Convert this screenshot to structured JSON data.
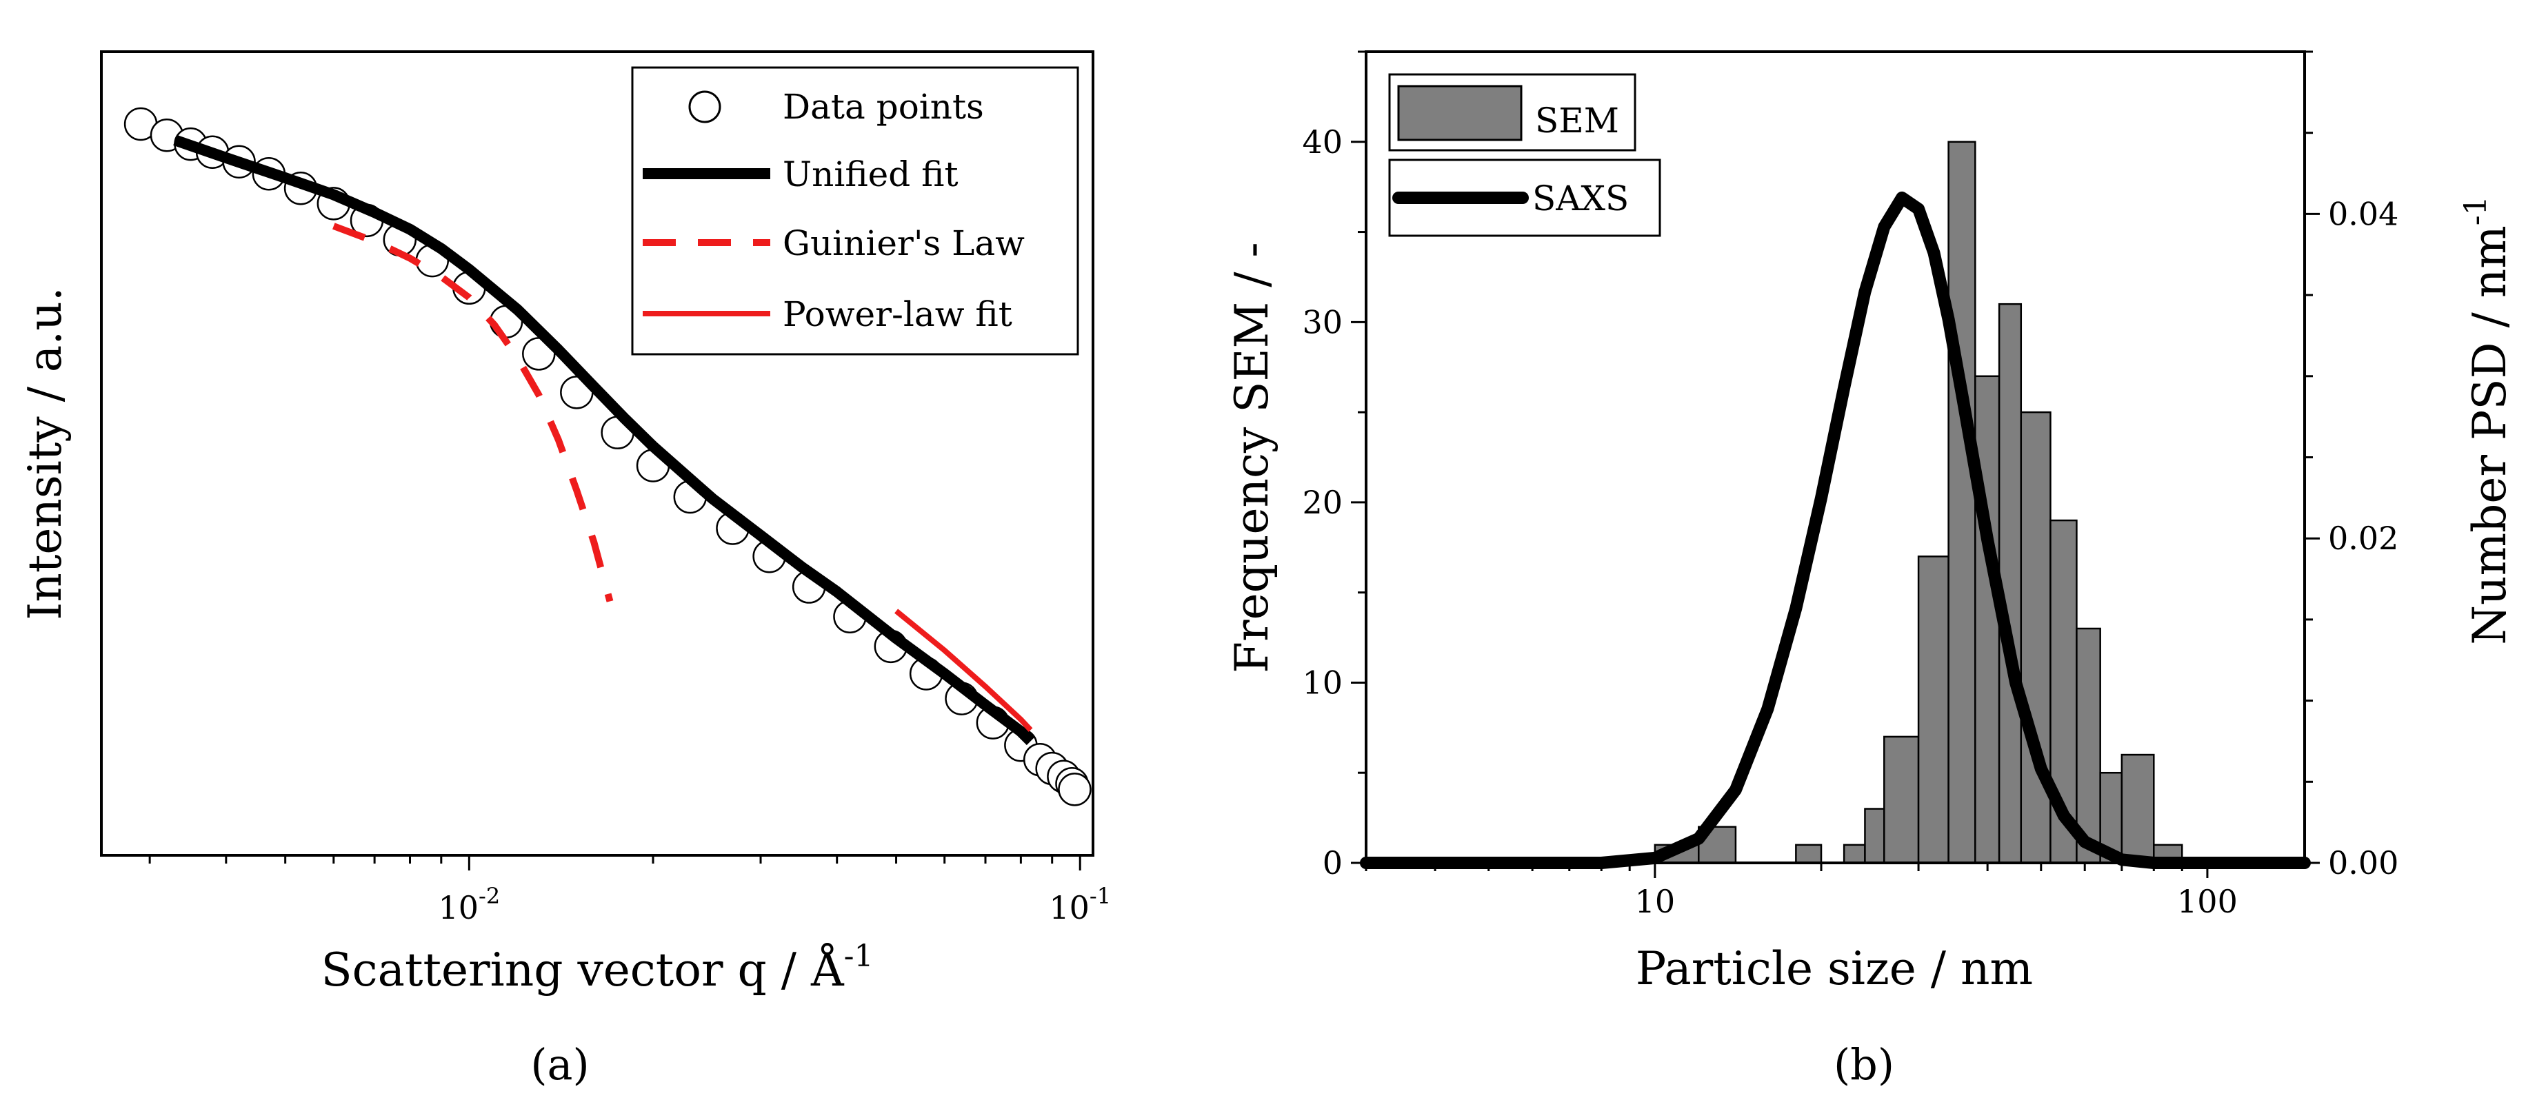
{
  "chart_data": [
    {
      "panel": "a",
      "type": "scatter",
      "caption": "(a)",
      "xscale": "log",
      "xlabel": "Scattering vector q / Å",
      "xlabel_sup": "-1",
      "ylabel": "Intensity / a.u.",
      "xlim": [
        0.0025,
        0.105
      ],
      "ylim": [
        0,
        100
      ],
      "xticks": [
        {
          "value": 0.01,
          "base": "10",
          "exp": "-2"
        },
        {
          "value": 0.1,
          "base": "10",
          "exp": "-1"
        }
      ],
      "yticks_shown": false,
      "legend_position": "top-right",
      "legend": [
        "Data points",
        "Unified fit",
        "Guinier's Law",
        "Power-law fit"
      ],
      "series": [
        {
          "name": "Data points",
          "marker": "open-circle",
          "color": "#000000",
          "x": [
            0.0029,
            0.0032,
            0.0035,
            0.0038,
            0.0042,
            0.0047,
            0.0053,
            0.006,
            0.0068,
            0.0077,
            0.0087,
            0.01,
            0.0115,
            0.013,
            0.015,
            0.0175,
            0.02,
            0.023,
            0.027,
            0.031,
            0.036,
            0.042,
            0.049,
            0.056,
            0.064,
            0.072,
            0.08,
            0.086,
            0.09,
            0.094,
            0.097,
            0.098
          ],
          "y": [
            91.0,
            89.6,
            88.5,
            87.5,
            86.3,
            84.8,
            83.0,
            81.1,
            79.0,
            76.6,
            74.0,
            70.6,
            66.4,
            62.4,
            57.6,
            52.6,
            48.5,
            44.6,
            40.7,
            37.2,
            33.4,
            29.7,
            26.0,
            22.6,
            19.5,
            16.5,
            13.7,
            11.9,
            10.8,
            9.8,
            8.9,
            8.2
          ]
        },
        {
          "name": "Unified fit",
          "style": "solid",
          "color": "#000000",
          "x": [
            0.0033,
            0.004,
            0.005,
            0.006,
            0.007,
            0.008,
            0.009,
            0.01,
            0.012,
            0.014,
            0.016,
            0.018,
            0.02,
            0.025,
            0.03,
            0.035,
            0.04,
            0.05,
            0.06,
            0.07,
            0.08,
            0.083
          ],
          "y": [
            89.0,
            86.8,
            84.3,
            82.2,
            80.0,
            77.9,
            75.5,
            72.9,
            67.9,
            62.9,
            58.3,
            54.3,
            50.9,
            44.4,
            39.8,
            35.9,
            32.8,
            27.0,
            22.6,
            18.7,
            15.4,
            14.2
          ]
        },
        {
          "name": "Guinier's Law",
          "style": "dashed",
          "color": "#ee1c1c",
          "x": [
            0.006,
            0.007,
            0.008,
            0.009,
            0.01,
            0.011,
            0.012,
            0.013,
            0.014,
            0.015,
            0.016,
            0.017
          ],
          "y": [
            78.3,
            76.4,
            74.3,
            72.0,
            69.4,
            66.0,
            61.9,
            57.3,
            51.7,
            45.4,
            39.0,
            31.6
          ]
        },
        {
          "name": "Power-law fit",
          "style": "solid",
          "color": "#ee1c1c",
          "x": [
            0.05,
            0.06,
            0.07,
            0.08,
            0.083
          ],
          "y": [
            30.4,
            25.5,
            21.0,
            16.9,
            15.6
          ]
        }
      ]
    },
    {
      "panel": "b",
      "type": "bar",
      "caption": "(b)",
      "xscale": "log",
      "xlabel": "Particle size / nm",
      "ylabel_left": "Frequency SEM / -",
      "ylabel_right": "Number PSD / nm",
      "ylabel_right_sup": "-1",
      "xlim": [
        3,
        150
      ],
      "ylim_left": [
        0,
        45
      ],
      "ylim_right": [
        0,
        0.05
      ],
      "xticks": [
        {
          "value": 10,
          "label": "10"
        },
        {
          "value": 100,
          "label": "100"
        }
      ],
      "yticks_left": [
        "0",
        "10",
        "20",
        "30",
        "40"
      ],
      "yticks_right": [
        "0.00",
        "0.02",
        "0.04"
      ],
      "legend_position": "top-left",
      "legend": [
        "SEM",
        "SAXS"
      ],
      "series": [
        {
          "name": "SEM",
          "type": "histogram",
          "axis": "left",
          "color": "#7f7f7f",
          "bins": [
            {
              "lo": 10,
              "hi": 12,
              "value": 1
            },
            {
              "lo": 12,
              "hi": 14,
              "value": 2
            },
            {
              "lo": 18,
              "hi": 20,
              "value": 1
            },
            {
              "lo": 22,
              "hi": 24,
              "value": 1
            },
            {
              "lo": 24,
              "hi": 26,
              "value": 3
            },
            {
              "lo": 26,
              "hi": 30,
              "value": 7
            },
            {
              "lo": 30,
              "hi": 34,
              "value": 17
            },
            {
              "lo": 34,
              "hi": 38,
              "value": 40
            },
            {
              "lo": 38,
              "hi": 42,
              "value": 27
            },
            {
              "lo": 42,
              "hi": 46,
              "value": 31
            },
            {
              "lo": 46,
              "hi": 52,
              "value": 25
            },
            {
              "lo": 52,
              "hi": 58,
              "value": 19
            },
            {
              "lo": 58,
              "hi": 64,
              "value": 13
            },
            {
              "lo": 64,
              "hi": 70,
              "value": 5
            },
            {
              "lo": 70,
              "hi": 80,
              "value": 6
            },
            {
              "lo": 80,
              "hi": 90,
              "value": 1
            }
          ]
        },
        {
          "name": "SAXS",
          "type": "line",
          "axis": "right",
          "color": "#000000",
          "x": [
            3,
            8,
            10,
            12,
            14,
            16,
            18,
            20,
            22,
            24,
            26,
            28,
            30,
            32,
            34,
            36,
            40,
            45,
            50,
            55,
            60,
            70,
            80,
            90,
            100,
            120,
            150
          ],
          "y": [
            0.0,
            0.0,
            0.0003,
            0.0015,
            0.0045,
            0.0095,
            0.0157,
            0.0225,
            0.0293,
            0.0352,
            0.0392,
            0.041,
            0.0403,
            0.0376,
            0.0335,
            0.0288,
            0.0199,
            0.0111,
            0.0058,
            0.0029,
            0.0013,
            0.0002,
            0.0,
            0.0,
            0.0,
            0.0,
            0.0
          ]
        }
      ]
    }
  ]
}
